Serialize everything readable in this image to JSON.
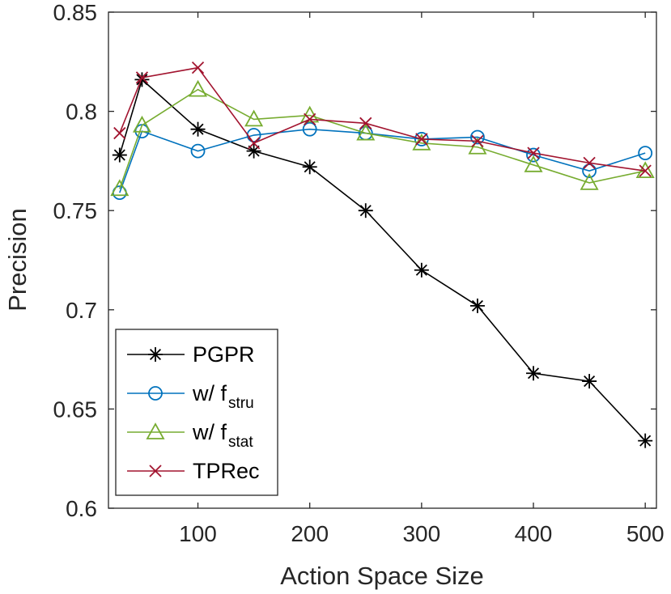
{
  "chart_data": {
    "type": "line",
    "title": "",
    "xlabel": "Action Space Size",
    "ylabel": "Precision",
    "xlim": [
      20,
      510
    ],
    "ylim": [
      0.6,
      0.85
    ],
    "xticks": [
      100,
      200,
      300,
      400,
      500
    ],
    "xtick_labels": [
      "100",
      "200",
      "300",
      "400",
      "500"
    ],
    "yticks": [
      0.6,
      0.65,
      0.7,
      0.75,
      0.8,
      0.85
    ],
    "ytick_labels": [
      "0.6",
      "0.65",
      "0.7",
      "0.75",
      "0.8",
      "0.85"
    ],
    "grid": false,
    "legend_position": "bottom-left",
    "x": [
      30,
      50,
      100,
      150,
      200,
      250,
      300,
      350,
      400,
      450,
      500
    ],
    "series": [
      {
        "name": "PGPR",
        "label_main": "PGPR",
        "label_sub": "",
        "color": "#000000",
        "marker": "asterisk",
        "values": [
          0.778,
          0.816,
          0.791,
          0.78,
          0.772,
          0.75,
          0.72,
          0.702,
          0.668,
          0.664,
          0.634
        ]
      },
      {
        "name": "w/ f_stru",
        "label_main": "w/ f",
        "label_sub": "stru",
        "color": "#0072BD",
        "marker": "circle",
        "values": [
          0.759,
          0.79,
          0.78,
          0.788,
          0.791,
          0.789,
          0.786,
          0.787,
          0.778,
          0.77,
          0.779
        ]
      },
      {
        "name": "w/ f_stat",
        "label_main": "w/ f",
        "label_sub": "stat",
        "color": "#77AC30",
        "marker": "triangle",
        "values": [
          0.761,
          0.793,
          0.811,
          0.796,
          0.798,
          0.789,
          0.784,
          0.782,
          0.773,
          0.764,
          0.77
        ]
      },
      {
        "name": "TPRec",
        "label_main": "TPRec",
        "label_sub": "",
        "color": "#A2142F",
        "marker": "x",
        "values": [
          0.789,
          0.817,
          0.822,
          0.784,
          0.796,
          0.794,
          0.786,
          0.785,
          0.779,
          0.774,
          0.77
        ]
      }
    ]
  }
}
